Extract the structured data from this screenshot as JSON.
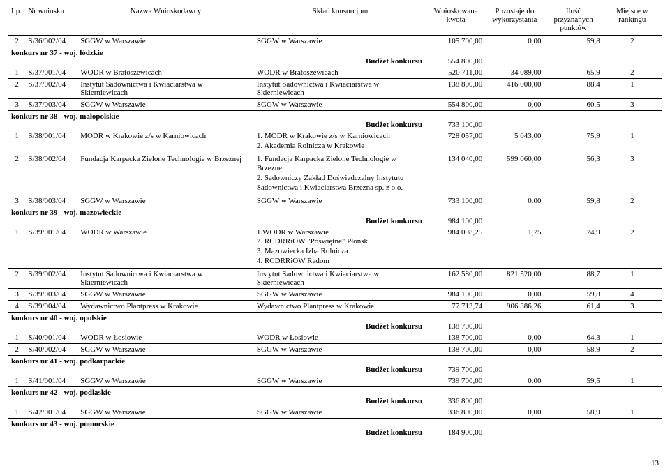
{
  "header": {
    "lp": "Lp.",
    "nr": "Nr wniosku",
    "name": "Nazwa Wnioskodawcy",
    "sklad": "Skład konsorcjum",
    "kwota_l1": "Wnioskowana",
    "kwota_l2": "kwota",
    "pozost_l1": "Pozostaje do",
    "pozost_l2": "wykorzystania",
    "punkty_l1": "Ilość przyznanych",
    "punkty_l2": "punktów",
    "rank_l1": "Miejsce w",
    "rank_l2": "rankingu"
  },
  "budzet_label": "Budżet konkursu",
  "blocks": [
    {
      "pre_rows": [
        {
          "lp": "2",
          "nr": "S/36/002/04",
          "name": "SGGW w Warszawie",
          "sklad": "SGGW w Warszawie",
          "kwota": "105 700,00",
          "pozost": "0,00",
          "punkty": "59,8",
          "rank": "2"
        }
      ],
      "konkurs": "konkurs nr 37 - woj. łódzkie",
      "budzet": "554 800,00",
      "rows": [
        {
          "lp": "1",
          "nr": "S/37/001/04",
          "name": "WODR w Bratoszewicach",
          "sklad": "WODR w Bratoszewicach",
          "kwota": "520 711,00",
          "pozost": "34 089,00",
          "punkty": "65,9",
          "rank": "2"
        },
        {
          "lp": "2",
          "nr": "S/37/002/04",
          "name": "Instytut Sadownictwa i Kwiaciarstwa w Skierniewicach",
          "sklad": "Instytut Sadownictwa i Kwiaciarstwa w Skierniewicach",
          "kwota": "138 800,00",
          "pozost": "416 000,00",
          "punkty": "88,4",
          "rank": "1"
        },
        {
          "lp": "3",
          "nr": "S/37/003/04",
          "name": "SGGW w Warszawie",
          "sklad": "SGGW w Warszawie",
          "kwota": "554 800,00",
          "pozost": "0,00",
          "punkty": "60,5",
          "rank": "3"
        }
      ]
    },
    {
      "konkurs": "konkurs nr 38 - woj. małopolskie",
      "budzet": "733 100,00",
      "rows": [
        {
          "lp": "1",
          "nr": "S/38/001/04",
          "name": "MODR w Krakowie z/s w Karniowicach",
          "sklad_lines": [
            "1. MODR w Krakowie z/s w Karniowicach",
            "2. Akademia Rolnicza w Krakowie"
          ],
          "kwota": "728 057,00",
          "pozost": "5 043,00",
          "punkty": "75,9",
          "rank": "1"
        },
        {
          "lp": "2",
          "nr": "S/38/002/04",
          "name": "Fundacja Karpacka Zielone Technologie w Brzeznej",
          "sklad_lines": [
            "1. Fundacja Karpacka Zielone Technologie w Brzeznej",
            "2. Sadowniczy Zakład Doświadczalny Instytutu Sadownictwa i Kwiaciarstwa Brzezna sp. z o.o."
          ],
          "kwota": "134 040,00",
          "pozost": "599 060,00",
          "punkty": "56,3",
          "rank": "3"
        },
        {
          "lp": "3",
          "nr": "S/38/003/04",
          "name": "SGGW w Warszawie",
          "sklad": "SGGW w Warszawie",
          "kwota": "733 100,00",
          "pozost": "0,00",
          "punkty": "59,8",
          "rank": "2"
        }
      ]
    },
    {
      "konkurs": "konkurs nr 39 - woj. mazowieckie",
      "budzet": "984 100,00",
      "rows": [
        {
          "lp": "1",
          "nr": "S/39/001/04",
          "name": "WODR w Warszawie",
          "sklad_lines": [
            "1.WODR w Warszawie",
            "2. RCDRRiOW \"Poświętne\" Płońsk",
            "3. Mazowiecka Izba Rolnicza",
            "4. RCDRRiOW Radom"
          ],
          "kwota": "984 098,25",
          "pozost": "1,75",
          "punkty": "74,9",
          "rank": "2"
        },
        {
          "lp": "2",
          "nr": "S/39/002/04",
          "name": "Instytut Sadownictwa i Kwiaciarstwa w Skierniewicach",
          "sklad": "Instytut Sadownictwa i Kwiaciarstwa w Skierniewicach",
          "kwota": "162 580,00",
          "pozost": "821 520,00",
          "punkty": "88,7",
          "rank": "1"
        },
        {
          "lp": "3",
          "nr": "S/39/003/04",
          "name": "SGGW w Warszawie",
          "sklad": "SGGW w Warszawie",
          "kwota": "984 100,00",
          "pozost": "0,00",
          "punkty": "59,8",
          "rank": "4"
        },
        {
          "lp": "4",
          "nr": "S/39/004/04",
          "name": "Wydawnictwo Plantpress w Krakowie",
          "sklad": "Wydawnictwo Plantpress w Krakowie",
          "kwota": "77 713,74",
          "pozost": "906 386,26",
          "punkty": "61,4",
          "rank": "3"
        }
      ]
    },
    {
      "konkurs": "konkurs nr 40 - woj. opolskie",
      "budzet": "138 700,00",
      "rows": [
        {
          "lp": "1",
          "nr": "S/40/001/04",
          "name": "WODR w Łosiowie",
          "sklad": "WODR w Łosiowie",
          "kwota": "138 700,00",
          "pozost": "0,00",
          "punkty": "64,3",
          "rank": "1"
        },
        {
          "lp": "2",
          "nr": "S/40/002/04",
          "name": "SGGW w Warszawie",
          "sklad": "SGGW w Warszawie",
          "kwota": "138 700,00",
          "pozost": "0,00",
          "punkty": "58,9",
          "rank": "2"
        }
      ]
    },
    {
      "konkurs": "konkurs nr 41 - woj. podkarpackie",
      "budzet": "739 700,00",
      "rows": [
        {
          "lp": "1",
          "nr": "S/41/001/04",
          "name": "SGGW w Warszawie",
          "sklad": "SGGW w Warszawie",
          "kwota": "739 700,00",
          "pozost": "0,00",
          "punkty": "59,5",
          "rank": "1"
        }
      ]
    },
    {
      "konkurs": "konkurs nr 42 - woj. podlaskie",
      "budzet": "336 800,00",
      "rows": [
        {
          "lp": "1",
          "nr": "S/42/001/04",
          "name": "SGGW w Warszawie",
          "sklad": "SGGW w Warszawie",
          "kwota": "336 800,00",
          "pozost": "0,00",
          "punkty": "58,9",
          "rank": "1"
        }
      ]
    },
    {
      "konkurs": "konkurs nr 43 - woj. pomorskie",
      "budzet": "184 900,00",
      "rows": []
    }
  ],
  "page_number": "13"
}
